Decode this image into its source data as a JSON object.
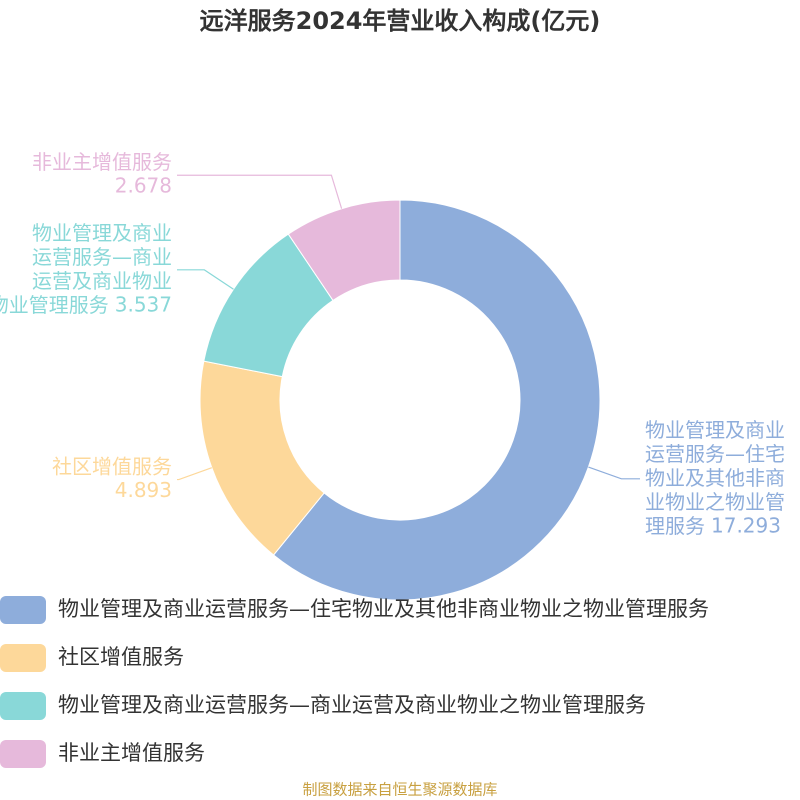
{
  "chart_data": {
    "type": "donut",
    "title": "远洋服务2024年营业收入构成(亿元)",
    "categories": [
      "物业管理及商业运营服务—住宅物业及其他非商业物业之物业管理服务",
      "社区增值服务",
      "物业管理及商业运营服务—商业运营及商业物业之物业管理服务",
      "非业主增值服务"
    ],
    "values": [
      17.293,
      4.893,
      3.537,
      2.678
    ],
    "colors": [
      "#8eaddb",
      "#fdd89a",
      "#89d8d8",
      "#e6b9db"
    ],
    "source": "制图数据来自恒生聚源数据库"
  }
}
